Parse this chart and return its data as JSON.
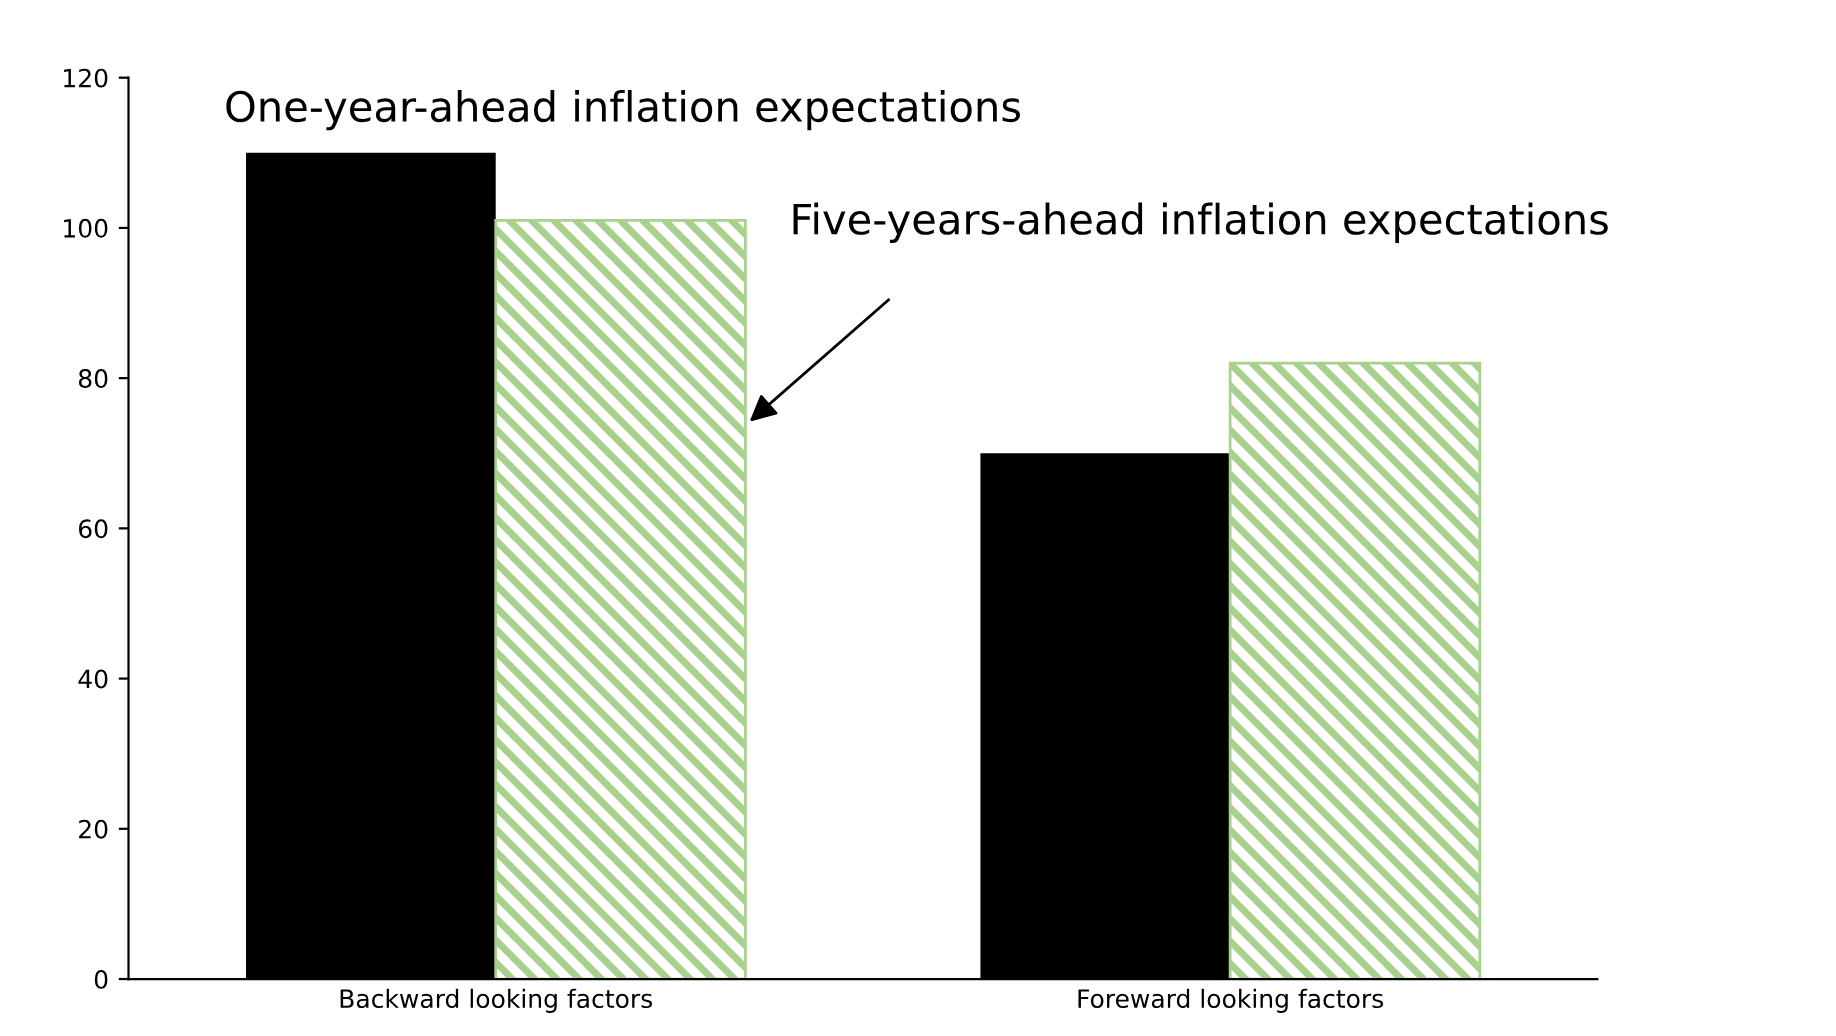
{
  "chart_data": {
    "type": "bar",
    "categories": [
      "Backward looking factors",
      "Foreward looking factors"
    ],
    "series": [
      {
        "name": "One-year-ahead inflation expectations",
        "color": "#000000",
        "values": [
          110,
          70
        ]
      },
      {
        "name": "Five-years-ahead inflation expectations",
        "color": "#a9d18e",
        "values": [
          101,
          82
        ]
      }
    ],
    "ylim": [
      0,
      120
    ],
    "yticks": [
      0,
      20,
      40,
      60,
      80,
      100,
      120
    ],
    "grid": false,
    "legend": false
  }
}
